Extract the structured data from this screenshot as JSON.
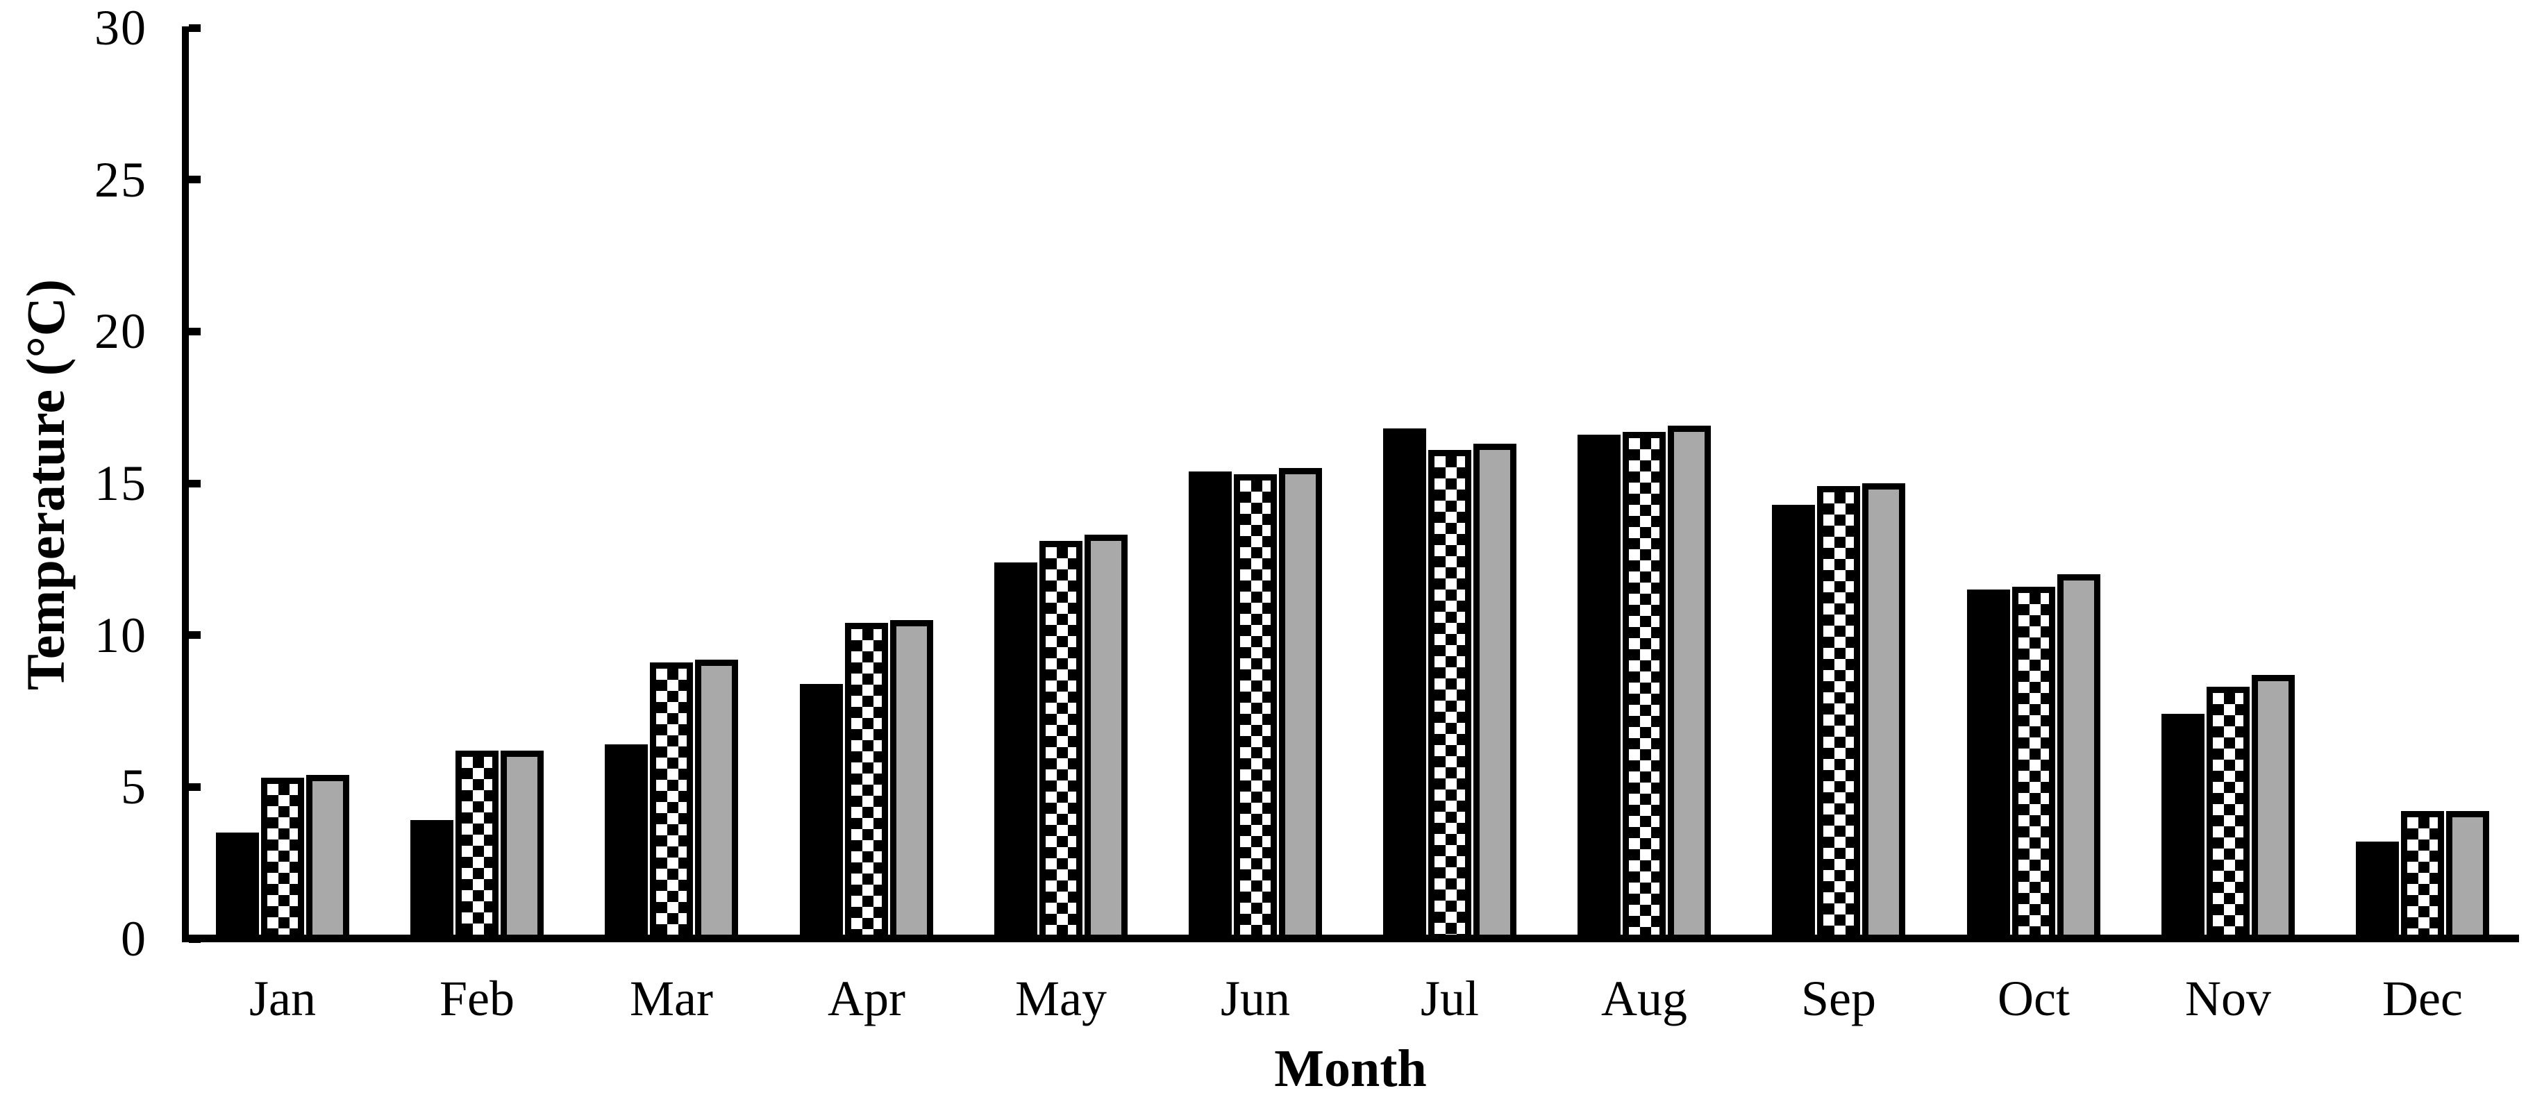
{
  "chart_data": {
    "type": "bar",
    "title": "",
    "xlabel": "Month",
    "ylabel": "Temperature (°C)",
    "categories": [
      "Jan",
      "Feb",
      "Mar",
      "Apr",
      "May",
      "Jun",
      "Jul",
      "Aug",
      "Sep",
      "Oct",
      "Nov",
      "Dec"
    ],
    "series": [
      {
        "name": "black-solid",
        "fill": "solid-black",
        "values": [
          3.5,
          3.9,
          6.4,
          8.4,
          12.4,
          15.4,
          16.8,
          16.6,
          14.3,
          11.5,
          7.4,
          3.2
        ]
      },
      {
        "name": "checkered",
        "fill": "black-white-checkerboard",
        "values": [
          5.3,
          6.2,
          9.1,
          10.4,
          13.1,
          15.3,
          16.1,
          16.7,
          14.9,
          11.6,
          8.3,
          4.2
        ]
      },
      {
        "name": "gray-solid",
        "fill": "solid-gray",
        "values": [
          5.4,
          6.2,
          9.2,
          10.5,
          13.3,
          15.5,
          16.3,
          16.9,
          15.0,
          12.0,
          8.7,
          4.2
        ]
      }
    ],
    "ylim": [
      0,
      30
    ],
    "ytick_interval": 5,
    "ytick_labels": [
      "0",
      "5",
      "10",
      "15",
      "20",
      "25",
      "30"
    ],
    "legend": "none",
    "grid": "off",
    "colors": {
      "bar_black": "#000000",
      "bar_gray": "#a9a9a9",
      "outline": "#000000",
      "background": "#ffffff",
      "text": "#000000"
    }
  }
}
